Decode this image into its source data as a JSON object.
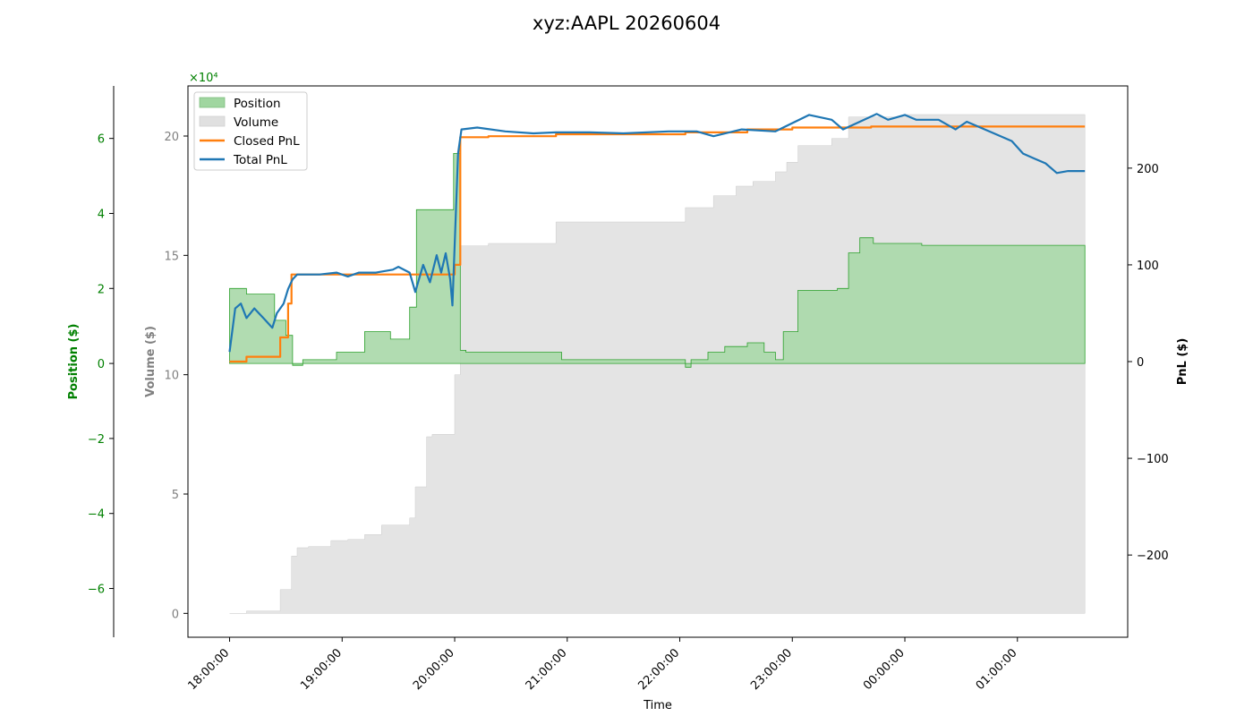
{
  "chart_data": {
    "type": "area",
    "title": "xyz:AAPL 20260604",
    "xlabel": "Time",
    "x_tick_labels": [
      "18:00:00",
      "19:00:00",
      "20:00:00",
      "21:00:00",
      "22:00:00",
      "23:00:00",
      "00:00:00",
      "01:00:00"
    ],
    "x_tick_hours": [
      0,
      1,
      2,
      3,
      4,
      5,
      6,
      7
    ],
    "xlim_hours": [
      -0.37,
      7.98
    ],
    "position_axis": {
      "label": "Position ($)",
      "color": "#008000",
      "offset_text": "×10⁴",
      "ylim": [
        -7.3,
        7.4
      ],
      "ticks": [
        -6,
        -4,
        -2,
        0,
        2,
        4,
        6
      ],
      "tick_labels": [
        "−6",
        "−4",
        "−2",
        "0",
        "2",
        "4",
        "6"
      ]
    },
    "volume_axis": {
      "label": "Volume ($)",
      "color": "#808080",
      "ylim": [
        -1,
        22.1
      ],
      "ticks": [
        0,
        5,
        10,
        15,
        20
      ],
      "tick_labels": [
        "0",
        "5",
        "10",
        "15",
        "20"
      ]
    },
    "pnl_axis": {
      "label": "PnL ($)",
      "color": "#000000",
      "ylim": [
        -285,
        285
      ],
      "ticks": [
        -200,
        -100,
        0,
        100,
        200
      ],
      "tick_labels": [
        "−200",
        "−100",
        "0",
        "100",
        "200"
      ]
    },
    "legend": {
      "position": "top-left",
      "entries": [
        {
          "label": "Position",
          "kind": "patch",
          "color": "#a0d6a0"
        },
        {
          "label": "Volume",
          "kind": "patch",
          "color": "#e0e0e0"
        },
        {
          "label": "Closed PnL",
          "kind": "line",
          "color": "#ff7f0e"
        },
        {
          "label": "Total PnL",
          "kind": "line",
          "color": "#1f77b4"
        }
      ]
    },
    "series": [
      {
        "name": "Position",
        "axis": "position",
        "color": "#2ca02c",
        "fill": "#a8d8a8",
        "step": true,
        "points": [
          [
            0.0,
            2.0
          ],
          [
            0.15,
            1.85
          ],
          [
            0.4,
            1.15
          ],
          [
            0.5,
            0.75
          ],
          [
            0.56,
            -0.05
          ],
          [
            0.65,
            0.1
          ],
          [
            0.95,
            0.3
          ],
          [
            1.2,
            0.85
          ],
          [
            1.43,
            0.65
          ],
          [
            1.6,
            1.5
          ],
          [
            1.66,
            4.1
          ],
          [
            1.99,
            5.6
          ],
          [
            2.05,
            0.35
          ],
          [
            2.1,
            0.3
          ],
          [
            2.3,
            0.3
          ],
          [
            2.45,
            0.3
          ],
          [
            2.95,
            0.1
          ],
          [
            3.5,
            0.1
          ],
          [
            3.9,
            0.1
          ],
          [
            4.05,
            -0.1
          ],
          [
            4.1,
            0.1
          ],
          [
            4.25,
            0.3
          ],
          [
            4.4,
            0.45
          ],
          [
            4.6,
            0.55
          ],
          [
            4.75,
            0.3
          ],
          [
            4.85,
            0.1
          ],
          [
            4.92,
            0.85
          ],
          [
            5.05,
            1.95
          ],
          [
            5.4,
            2.0
          ],
          [
            5.5,
            2.95
          ],
          [
            5.6,
            3.35
          ],
          [
            5.72,
            3.2
          ],
          [
            6.15,
            3.15
          ],
          [
            6.4,
            3.15
          ],
          [
            7.2,
            3.15
          ],
          [
            7.6,
            3.15
          ]
        ]
      },
      {
        "name": "Volume",
        "axis": "volume",
        "color": "#cccccc",
        "fill": "#e4e4e4",
        "step": true,
        "points": [
          [
            0.0,
            0.0
          ],
          [
            0.15,
            0.1
          ],
          [
            0.45,
            1.0
          ],
          [
            0.55,
            2.4
          ],
          [
            0.6,
            2.75
          ],
          [
            0.7,
            2.8
          ],
          [
            0.9,
            3.05
          ],
          [
            1.05,
            3.1
          ],
          [
            1.2,
            3.3
          ],
          [
            1.35,
            3.7
          ],
          [
            1.6,
            4.0
          ],
          [
            1.65,
            5.3
          ],
          [
            1.75,
            7.4
          ],
          [
            1.8,
            7.5
          ],
          [
            2.0,
            10.0
          ],
          [
            2.05,
            15.4
          ],
          [
            2.3,
            15.5
          ],
          [
            2.9,
            16.4
          ],
          [
            3.2,
            16.4
          ],
          [
            3.9,
            16.4
          ],
          [
            4.05,
            17.0
          ],
          [
            4.3,
            17.5
          ],
          [
            4.5,
            17.9
          ],
          [
            4.65,
            18.1
          ],
          [
            4.85,
            18.5
          ],
          [
            4.95,
            18.9
          ],
          [
            5.05,
            19.6
          ],
          [
            5.35,
            19.9
          ],
          [
            5.5,
            20.8
          ],
          [
            5.7,
            20.8
          ],
          [
            6.0,
            20.9
          ],
          [
            7.6,
            20.9
          ]
        ]
      },
      {
        "name": "Closed PnL",
        "axis": "pnl",
        "color": "#ff7f0e",
        "step": true,
        "points": [
          [
            0.0,
            0.0
          ],
          [
            0.15,
            5.0
          ],
          [
            0.45,
            25.0
          ],
          [
            0.52,
            60.0
          ],
          [
            0.55,
            90.0
          ],
          [
            1.55,
            90.0
          ],
          [
            2.0,
            100.0
          ],
          [
            2.05,
            232.0
          ],
          [
            2.3,
            233.0
          ],
          [
            2.9,
            235.0
          ],
          [
            4.05,
            237.0
          ],
          [
            4.6,
            240.0
          ],
          [
            5.0,
            242.0
          ],
          [
            5.7,
            243.0
          ],
          [
            7.6,
            243.0
          ]
        ]
      },
      {
        "name": "Total PnL",
        "axis": "pnl",
        "color": "#1f77b4",
        "step": false,
        "points": [
          [
            0.0,
            10.0
          ],
          [
            0.05,
            55.0
          ],
          [
            0.1,
            60.0
          ],
          [
            0.15,
            45.0
          ],
          [
            0.22,
            55.0
          ],
          [
            0.3,
            45.0
          ],
          [
            0.38,
            35.0
          ],
          [
            0.42,
            50.0
          ],
          [
            0.48,
            60.0
          ],
          [
            0.52,
            75.0
          ],
          [
            0.56,
            85.0
          ],
          [
            0.6,
            90.0
          ],
          [
            0.8,
            90.0
          ],
          [
            0.95,
            92.0
          ],
          [
            1.05,
            88.0
          ],
          [
            1.15,
            92.0
          ],
          [
            1.3,
            92.0
          ],
          [
            1.45,
            95.0
          ],
          [
            1.5,
            98.0
          ],
          [
            1.6,
            92.0
          ],
          [
            1.65,
            72.0
          ],
          [
            1.72,
            100.0
          ],
          [
            1.78,
            82.0
          ],
          [
            1.84,
            110.0
          ],
          [
            1.88,
            92.0
          ],
          [
            1.92,
            112.0
          ],
          [
            1.96,
            85.0
          ],
          [
            1.98,
            58.0
          ],
          [
            2.0,
            120.0
          ],
          [
            2.03,
            215.0
          ],
          [
            2.06,
            240.0
          ],
          [
            2.2,
            242.0
          ],
          [
            2.45,
            238.0
          ],
          [
            2.7,
            236.0
          ],
          [
            2.9,
            237.0
          ],
          [
            3.2,
            237.0
          ],
          [
            3.5,
            236.0
          ],
          [
            3.9,
            238.0
          ],
          [
            4.15,
            238.0
          ],
          [
            4.3,
            233.0
          ],
          [
            4.55,
            240.0
          ],
          [
            4.85,
            238.0
          ],
          [
            5.15,
            255.0
          ],
          [
            5.35,
            250.0
          ],
          [
            5.45,
            240.0
          ],
          [
            5.6,
            248.0
          ],
          [
            5.75,
            256.0
          ],
          [
            5.85,
            250.0
          ],
          [
            6.0,
            255.0
          ],
          [
            6.1,
            250.0
          ],
          [
            6.3,
            250.0
          ],
          [
            6.45,
            240.0
          ],
          [
            6.55,
            248.0
          ],
          [
            6.75,
            238.0
          ],
          [
            6.95,
            228.0
          ],
          [
            7.05,
            215.0
          ],
          [
            7.15,
            210.0
          ],
          [
            7.25,
            205.0
          ],
          [
            7.35,
            195.0
          ],
          [
            7.45,
            197.0
          ],
          [
            7.6,
            197.0
          ]
        ]
      }
    ]
  }
}
